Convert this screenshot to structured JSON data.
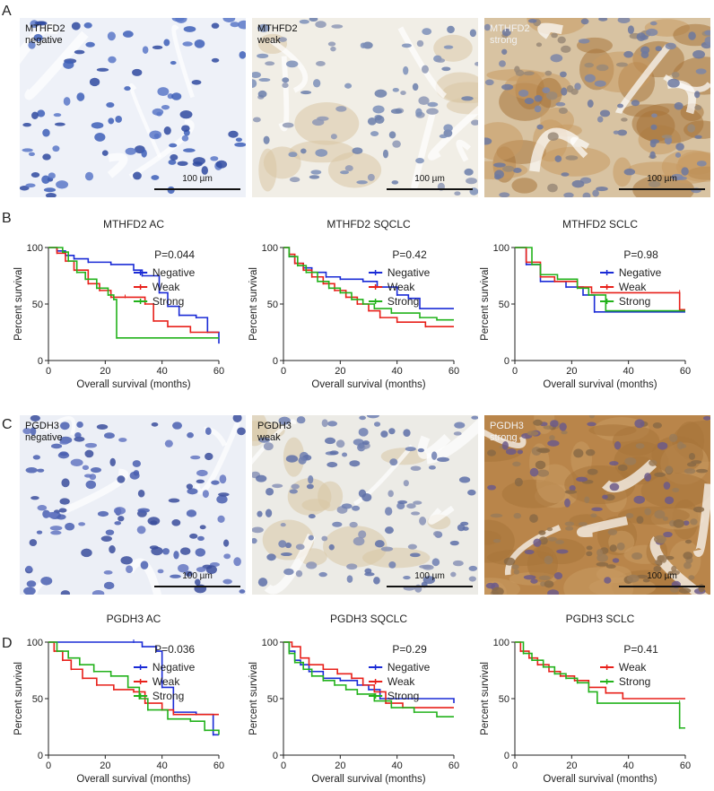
{
  "panels": {
    "a": "A",
    "b": "B",
    "c": "C",
    "d": "D"
  },
  "micrographs": [
    {
      "line1": "MTHFD2",
      "line2": "negative",
      "scale": "100 µm",
      "style": "neg"
    },
    {
      "line1": "MTHFD2",
      "line2": "weak",
      "scale": "100 µm",
      "style": "weak"
    },
    {
      "line1": "MTHFD2",
      "line2": "strong",
      "scale": "100 µm",
      "style": "strong"
    },
    {
      "line1": "PGDH3",
      "line2": "negative",
      "scale": "100 µm",
      "style": "neg2"
    },
    {
      "line1": "PGDH3",
      "line2": "weak",
      "scale": "100 µm",
      "style": "weak2"
    },
    {
      "line1": "PGDH3",
      "line2": "strong",
      "scale": "100 µm",
      "style": "strong2"
    }
  ],
  "colors": {
    "negative": "#1a2bd6",
    "weak": "#e8201a",
    "strong": "#22b21b"
  },
  "chart_data": [
    {
      "type": "line",
      "title": "MTHFD2 AC",
      "xlabel": "Overall survival (months)",
      "ylabel": "Percent survival",
      "xlim": [
        0,
        60
      ],
      "ylim": [
        0,
        100
      ],
      "xticks": [
        0,
        20,
        40,
        60
      ],
      "yticks": [
        0,
        50,
        100
      ],
      "pvalue": "P=0.044",
      "series": [
        {
          "name": "Negative",
          "color": "#1a2bd6",
          "points": [
            [
              0,
              100
            ],
            [
              3,
              97
            ],
            [
              6,
              93
            ],
            [
              9,
              90
            ],
            [
              14,
              87
            ],
            [
              22,
              85
            ],
            [
              30,
              80
            ],
            [
              33,
              75
            ],
            [
              39,
              60
            ],
            [
              42,
              48
            ],
            [
              46,
              40
            ],
            [
              52,
              38
            ],
            [
              56,
              25
            ],
            [
              60,
              15
            ]
          ]
        },
        {
          "name": "Weak",
          "color": "#e8201a",
          "points": [
            [
              0,
              100
            ],
            [
              3,
              95
            ],
            [
              6,
              88
            ],
            [
              9,
              80
            ],
            [
              14,
              68
            ],
            [
              18,
              62
            ],
            [
              22,
              56
            ],
            [
              27,
              56
            ],
            [
              34,
              50
            ],
            [
              37,
              35
            ],
            [
              42,
              30
            ],
            [
              50,
              25
            ],
            [
              60,
              25
            ]
          ]
        },
        {
          "name": "Strong",
          "color": "#22b21b",
          "points": [
            [
              0,
              100
            ],
            [
              5,
              96
            ],
            [
              7,
              88
            ],
            [
              10,
              78
            ],
            [
              13,
              72
            ],
            [
              17,
              64
            ],
            [
              21,
              58
            ],
            [
              23,
              54
            ],
            [
              24,
              20
            ],
            [
              60,
              20
            ]
          ]
        }
      ]
    },
    {
      "type": "line",
      "title": "MTHFD2 SQCLC",
      "xlabel": "Overall survival (months)",
      "ylabel": "Percent survival",
      "xlim": [
        0,
        60
      ],
      "ylim": [
        0,
        100
      ],
      "xticks": [
        0,
        20,
        40,
        60
      ],
      "yticks": [
        0,
        50,
        100
      ],
      "pvalue": "P=0.42",
      "series": [
        {
          "name": "Negative",
          "color": "#1a2bd6",
          "points": [
            [
              0,
              100
            ],
            [
              2,
              92
            ],
            [
              4,
              86
            ],
            [
              7,
              82
            ],
            [
              10,
              78
            ],
            [
              15,
              74
            ],
            [
              20,
              72
            ],
            [
              28,
              70
            ],
            [
              33,
              65
            ],
            [
              40,
              58
            ],
            [
              44,
              55
            ],
            [
              48,
              46
            ],
            [
              60,
              46
            ]
          ]
        },
        {
          "name": "Weak",
          "color": "#e8201a",
          "points": [
            [
              0,
              100
            ],
            [
              2,
              94
            ],
            [
              4,
              86
            ],
            [
              7,
              80
            ],
            [
              10,
              74
            ],
            [
              14,
              68
            ],
            [
              18,
              62
            ],
            [
              22,
              56
            ],
            [
              26,
              50
            ],
            [
              30,
              44
            ],
            [
              34,
              38
            ],
            [
              40,
              34
            ],
            [
              50,
              30
            ],
            [
              60,
              30
            ]
          ]
        },
        {
          "name": "Strong",
          "color": "#22b21b",
          "points": [
            [
              0,
              100
            ],
            [
              2,
              92
            ],
            [
              5,
              84
            ],
            [
              8,
              78
            ],
            [
              12,
              70
            ],
            [
              16,
              64
            ],
            [
              20,
              60
            ],
            [
              24,
              54
            ],
            [
              28,
              50
            ],
            [
              32,
              46
            ],
            [
              38,
              42
            ],
            [
              48,
              38
            ],
            [
              54,
              36
            ],
            [
              60,
              36
            ]
          ]
        }
      ]
    },
    {
      "type": "line",
      "title": "MTHFD2 SCLC",
      "xlabel": "Overall survival (months)",
      "ylabel": "Percent survival",
      "xlim": [
        0,
        60
      ],
      "ylim": [
        0,
        100
      ],
      "xticks": [
        0,
        20,
        40,
        60
      ],
      "yticks": [
        0,
        50,
        100
      ],
      "pvalue": "P=0.98",
      "series": [
        {
          "name": "Negative",
          "color": "#1a2bd6",
          "points": [
            [
              0,
              100
            ],
            [
              4,
              85
            ],
            [
              9,
              70
            ],
            [
              18,
              65
            ],
            [
              24,
              58
            ],
            [
              28,
              43
            ],
            [
              60,
              43
            ]
          ]
        },
        {
          "name": "Weak",
          "color": "#e8201a",
          "points": [
            [
              0,
              100
            ],
            [
              4,
              87
            ],
            [
              9,
              74
            ],
            [
              14,
              70
            ],
            [
              22,
              65
            ],
            [
              27,
              60
            ],
            [
              58,
              60
            ],
            [
              58,
              45
            ],
            [
              60,
              45
            ]
          ]
        },
        {
          "name": "Strong",
          "color": "#22b21b",
          "points": [
            [
              0,
              100
            ],
            [
              6,
              85
            ],
            [
              9,
              76
            ],
            [
              15,
              72
            ],
            [
              22,
              64
            ],
            [
              26,
              58
            ],
            [
              32,
              44
            ],
            [
              60,
              44
            ]
          ]
        }
      ]
    },
    {
      "type": "line",
      "title": "PGDH3 AC",
      "xlabel": "Overall survival (months)",
      "ylabel": "Percent survival",
      "xlim": [
        0,
        60
      ],
      "ylim": [
        0,
        100
      ],
      "xticks": [
        0,
        20,
        40,
        60
      ],
      "yticks": [
        0,
        50,
        100
      ],
      "pvalue": "P=0.036",
      "series": [
        {
          "name": "Negative",
          "color": "#1a2bd6",
          "points": [
            [
              0,
              100
            ],
            [
              30,
              100
            ],
            [
              33,
              96
            ],
            [
              38,
              92
            ],
            [
              40,
              60
            ],
            [
              44,
              38
            ],
            [
              52,
              36
            ],
            [
              58,
              18
            ],
            [
              60,
              18
            ]
          ]
        },
        {
          "name": "Weak",
          "color": "#e8201a",
          "points": [
            [
              0,
              100
            ],
            [
              2,
              92
            ],
            [
              5,
              84
            ],
            [
              8,
              76
            ],
            [
              12,
              68
            ],
            [
              17,
              62
            ],
            [
              23,
              58
            ],
            [
              30,
              56
            ],
            [
              34,
              46
            ],
            [
              40,
              40
            ],
            [
              44,
              36
            ],
            [
              60,
              36
            ]
          ]
        },
        {
          "name": "Strong",
          "color": "#22b21b",
          "points": [
            [
              0,
              100
            ],
            [
              3,
              92
            ],
            [
              7,
              86
            ],
            [
              11,
              80
            ],
            [
              16,
              74
            ],
            [
              22,
              70
            ],
            [
              28,
              60
            ],
            [
              32,
              50
            ],
            [
              35,
              40
            ],
            [
              42,
              32
            ],
            [
              50,
              30
            ],
            [
              55,
              22
            ],
            [
              60,
              18
            ]
          ]
        }
      ]
    },
    {
      "type": "line",
      "title": "PGDH3 SQCLC",
      "xlabel": "Overall survival (months)",
      "ylabel": "Percent survival",
      "xlim": [
        0,
        60
      ],
      "ylim": [
        0,
        100
      ],
      "xticks": [
        0,
        20,
        40,
        60
      ],
      "yticks": [
        0,
        50,
        100
      ],
      "pvalue": "P=0.29",
      "series": [
        {
          "name": "Negative",
          "color": "#1a2bd6",
          "points": [
            [
              0,
              100
            ],
            [
              2,
              92
            ],
            [
              4,
              84
            ],
            [
              6,
              80
            ],
            [
              9,
              74
            ],
            [
              14,
              68
            ],
            [
              20,
              66
            ],
            [
              26,
              62
            ],
            [
              30,
              58
            ],
            [
              34,
              50
            ],
            [
              60,
              46
            ]
          ]
        },
        {
          "name": "Weak",
          "color": "#e8201a",
          "points": [
            [
              0,
              100
            ],
            [
              3,
              96
            ],
            [
              6,
              86
            ],
            [
              9,
              80
            ],
            [
              14,
              76
            ],
            [
              19,
              72
            ],
            [
              24,
              68
            ],
            [
              28,
              62
            ],
            [
              32,
              56
            ],
            [
              36,
              46
            ],
            [
              42,
              42
            ],
            [
              60,
              42
            ]
          ]
        },
        {
          "name": "Strong",
          "color": "#22b21b",
          "points": [
            [
              0,
              100
            ],
            [
              2,
              90
            ],
            [
              4,
              82
            ],
            [
              7,
              76
            ],
            [
              10,
              70
            ],
            [
              14,
              66
            ],
            [
              18,
              62
            ],
            [
              22,
              58
            ],
            [
              26,
              54
            ],
            [
              32,
              48
            ],
            [
              38,
              42
            ],
            [
              46,
              38
            ],
            [
              54,
              34
            ],
            [
              60,
              34
            ]
          ]
        }
      ]
    },
    {
      "type": "line",
      "title": "PGDH3 SCLC",
      "xlabel": "Overall survival (months)",
      "ylabel": "Percent survival",
      "xlim": [
        0,
        60
      ],
      "ylim": [
        0,
        100
      ],
      "xticks": [
        0,
        20,
        40,
        60
      ],
      "yticks": [
        0,
        50,
        100
      ],
      "pvalue": "P=0.41",
      "series": [
        {
          "name": "Weak",
          "color": "#e8201a",
          "points": [
            [
              0,
              100
            ],
            [
              2,
              92
            ],
            [
              5,
              86
            ],
            [
              8,
              80
            ],
            [
              12,
              74
            ],
            [
              16,
              70
            ],
            [
              21,
              66
            ],
            [
              26,
              60
            ],
            [
              32,
              55
            ],
            [
              38,
              50
            ],
            [
              60,
              50
            ]
          ]
        },
        {
          "name": "Strong",
          "color": "#22b21b",
          "points": [
            [
              0,
              100
            ],
            [
              3,
              90
            ],
            [
              6,
              84
            ],
            [
              10,
              78
            ],
            [
              14,
              72
            ],
            [
              18,
              68
            ],
            [
              22,
              64
            ],
            [
              26,
              56
            ],
            [
              29,
              46
            ],
            [
              58,
              46
            ],
            [
              58,
              24
            ],
            [
              60,
              24
            ]
          ]
        }
      ]
    }
  ]
}
